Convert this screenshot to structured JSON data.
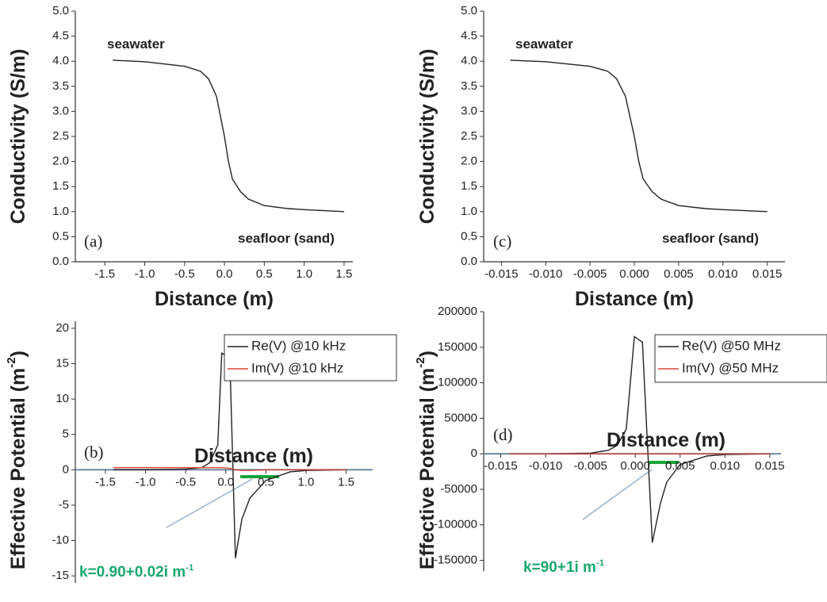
{
  "chart_data": [
    {
      "type": "line",
      "panel_label": "(a)",
      "x_label": [
        "Distance (m)"
      ],
      "y_label": [
        "Conductivity (S/m)"
      ],
      "annotations": [
        {
          "text": [
            "seawater"
          ]
        },
        {
          "text": [
            "seafloor (sand)"
          ]
        }
      ],
      "x": [
        -1.4,
        -1.0,
        -0.5,
        -0.3,
        -0.2,
        -0.1,
        -0.05,
        0,
        0.05,
        0.1,
        0.2,
        0.3,
        0.5,
        0.8,
        1.0,
        1.5
      ],
      "series": [
        {
          "color": "#222222",
          "values": [
            4.02,
            3.99,
            3.9,
            3.8,
            3.65,
            3.3,
            2.9,
            2.5,
            2.0,
            1.65,
            1.4,
            1.25,
            1.12,
            1.06,
            1.04,
            1.0
          ]
        }
      ],
      "xlim": [
        -1.87,
        1.61
      ],
      "ylim": [
        0,
        5
      ],
      "xticks": [
        -1.5,
        {
          "value": -1.0,
          "label": "-1.0"
        },
        -0.5,
        {
          "value": 0,
          "label": "0.0"
        },
        0.5,
        {
          "value": 1,
          "label": "1.0"
        },
        1.5
      ],
      "yticks": [
        {
          "value": 0,
          "label": "0.0"
        },
        0.5,
        {
          "value": 1,
          "label": "1.0"
        },
        1.5,
        {
          "value": 2,
          "label": "2.0"
        },
        2.5,
        {
          "value": 3,
          "label": "3.0"
        },
        3.5,
        {
          "value": 4,
          "label": "4.0"
        },
        4.5,
        {
          "value": 5,
          "label": "5.0"
        }
      ]
    },
    {
      "type": "line",
      "panel_label": "(b)",
      "x_label": [
        "Distance (m)"
      ],
      "y_label": [
        "Effective Potential (m",
        "-2",
        ")"
      ],
      "annotations": [
        {
          "text": [
            "k=0.90+0.02i m",
            "-1"
          ]
        }
      ],
      "legend": "upper right",
      "x": [
        -1.4,
        -1.0,
        -0.5,
        -0.3,
        -0.2,
        -0.1,
        -0.05,
        0.05,
        0.12,
        0.2,
        0.3,
        0.5,
        0.8,
        1.0,
        1.5
      ],
      "series": [
        {
          "name": "Re(V) @10 kHz",
          "color": "#222222",
          "values": [
            0,
            0,
            0.1,
            0.3,
            1,
            3.5,
            16.5,
            15.8,
            -12.5,
            -7,
            -4,
            -1.5,
            -0.3,
            -0.1,
            0
          ]
        },
        {
          "name": "Im(V) @10 kHz",
          "color": "#d9453a",
          "values": [
            0.3,
            0.3,
            0.3,
            0.3,
            0.3,
            0.3,
            0.3,
            0.2,
            0,
            -0.1,
            -0.1,
            0,
            0,
            0,
            0
          ]
        }
      ],
      "xlim": [
        -1.875,
        1.83
      ],
      "ylim": [
        -16,
        21
      ],
      "xticks": [
        -1.5,
        {
          "value": -1.0,
          "label": "-1.0"
        },
        -0.5,
        {
          "value": 0,
          "label": "0.0"
        },
        0.5,
        {
          "value": 1,
          "label": "1.0"
        },
        1.5
      ],
      "yticks": [
        -15,
        -10,
        -5,
        0,
        5,
        10,
        15,
        20
      ]
    },
    {
      "type": "line",
      "panel_label": "(c)",
      "x_label": [
        "Distance (m)"
      ],
      "y_label": [
        "Conductivity (S/m)"
      ],
      "annotations": [
        {
          "text": [
            "seawater"
          ]
        },
        {
          "text": [
            "seafloor (sand)"
          ]
        }
      ],
      "x": [
        -0.014,
        -0.01,
        -0.005,
        -0.003,
        -0.002,
        -0.001,
        -0.0005,
        0,
        0.0005,
        0.001,
        0.002,
        0.003,
        0.005,
        0.008,
        0.01,
        0.015
      ],
      "series": [
        {
          "color": "#222222",
          "values": [
            4.02,
            3.99,
            3.9,
            3.8,
            3.65,
            3.3,
            2.9,
            2.5,
            2.0,
            1.65,
            1.4,
            1.25,
            1.12,
            1.06,
            1.04,
            1.0
          ]
        }
      ],
      "xlim": [
        -0.017,
        0.017
      ],
      "ylim": [
        0,
        5
      ],
      "xticks": [
        -0.015,
        {
          "value": -0.01,
          "label": "-0.010"
        },
        -0.005,
        {
          "value": 0,
          "label": "0.000"
        },
        0.005,
        {
          "value": 0.01,
          "label": "0.010"
        },
        0.015
      ],
      "yticks": [
        {
          "value": 0,
          "label": "0.0"
        },
        0.5,
        {
          "value": 1,
          "label": "1.0"
        },
        1.5,
        {
          "value": 2,
          "label": "2.0"
        },
        2.5,
        {
          "value": 3,
          "label": "3.0"
        },
        3.5,
        {
          "value": 4,
          "label": "4.0"
        },
        4.5,
        {
          "value": 5,
          "label": "5.0"
        }
      ]
    },
    {
      "type": "line",
      "panel_label": "(d)",
      "x_label": [
        "Distance (m)"
      ],
      "y_label": [
        "Effective Potential (m",
        "-2",
        ")"
      ],
      "annotations": [
        {
          "text": [
            "k=90+1i m",
            "-1"
          ]
        }
      ],
      "legend": "upper right",
      "x": [
        -0.014,
        -0.01,
        -0.005,
        -0.003,
        -0.002,
        -0.001,
        -0.0001,
        0.0008,
        0.0019,
        0.0028,
        0.0035,
        0.005,
        0.008,
        0.01,
        0.015
      ],
      "series": [
        {
          "name": "Re(V) @50 MHz",
          "color": "#222222",
          "values": [
            0,
            0,
            1000,
            5000,
            12000,
            35000,
            165000,
            157000,
            -125000,
            -70000,
            -40000,
            -15000,
            -3000,
            -1000,
            0
          ]
        },
        {
          "name": "Im(V) @50 MHz",
          "color": "#d9453a",
          "values": [
            0,
            0,
            0,
            0,
            0,
            0,
            0,
            0,
            0,
            0,
            0,
            0,
            0,
            0,
            0
          ]
        }
      ],
      "xlim": [
        -0.0169,
        0.01625
      ],
      "ylim": [
        -165000,
        200000
      ],
      "xticks": [
        -0.015,
        {
          "value": -0.01,
          "label": "-0.010"
        },
        -0.005,
        {
          "value": 0,
          "label": "0.000"
        },
        0.005,
        {
          "value": 0.01,
          "label": "0.010"
        },
        0.015
      ],
      "yticks": [
        -150000,
        -100000,
        -50000,
        0,
        50000,
        100000,
        150000,
        200000
      ]
    }
  ]
}
